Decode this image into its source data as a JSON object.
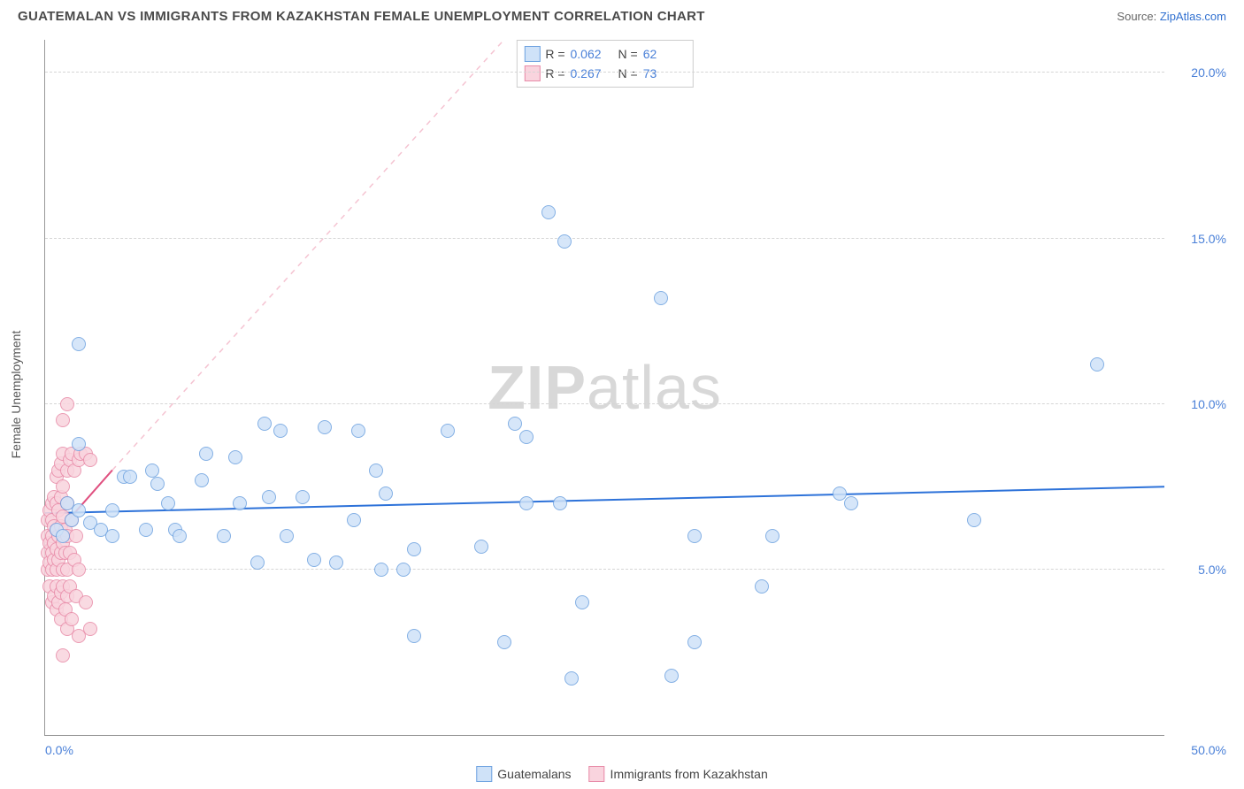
{
  "header": {
    "title": "GUATEMALAN VS IMMIGRANTS FROM KAZAKHSTAN FEMALE UNEMPLOYMENT CORRELATION CHART",
    "source_label": "Source:",
    "source_name": "ZipAtlas.com"
  },
  "watermark": {
    "prefix": "ZIP",
    "suffix": "atlas"
  },
  "chart": {
    "type": "scatter",
    "y_axis_title": "Female Unemployment",
    "background_color": "#ffffff",
    "grid_color": "#d5d5d5",
    "axis_color": "#999999",
    "tick_label_color": "#4a80d8",
    "xlim": [
      0,
      50
    ],
    "ylim": [
      0,
      21
    ],
    "x_ticks": [
      {
        "value": 0,
        "label": "0.0%",
        "pos": "left"
      },
      {
        "value": 50,
        "label": "50.0%",
        "pos": "right"
      }
    ],
    "y_ticks": [
      {
        "value": 5,
        "label": "5.0%"
      },
      {
        "value": 10,
        "label": "10.0%"
      },
      {
        "value": 15,
        "label": "15.0%"
      },
      {
        "value": 20,
        "label": "20.0%"
      }
    ],
    "stats_legend": [
      {
        "series": "blue",
        "r_label": "R =",
        "r_value": "0.062",
        "n_label": "N =",
        "n_value": "62"
      },
      {
        "series": "pink",
        "r_label": "R =",
        "r_value": "0.267",
        "n_label": "N =",
        "n_value": "73"
      }
    ],
    "series_legend": [
      {
        "series": "blue",
        "label": "Guatemalans"
      },
      {
        "series": "pink",
        "label": "Immigrants from Kazakhstan"
      }
    ],
    "series": {
      "blue": {
        "label": "Guatemalans",
        "marker_fill": "#cfe2f8",
        "marker_stroke": "#6fa3e0",
        "marker_size": 16,
        "marker_opacity": 0.85,
        "trend": {
          "x1": 0,
          "y1": 6.7,
          "x2": 50,
          "y2": 7.5,
          "color": "#2d72d9",
          "width": 2,
          "dash": "none"
        },
        "points": [
          [
            0.5,
            6.2
          ],
          [
            0.8,
            6.0
          ],
          [
            1.0,
            7.0
          ],
          [
            1.2,
            6.5
          ],
          [
            1.5,
            6.8
          ],
          [
            1.5,
            8.8
          ],
          [
            1.5,
            11.8
          ],
          [
            2.0,
            6.4
          ],
          [
            2.5,
            6.2
          ],
          [
            3.0,
            6.8
          ],
          [
            3.0,
            6.0
          ],
          [
            3.5,
            7.8
          ],
          [
            3.8,
            7.8
          ],
          [
            4.5,
            6.2
          ],
          [
            4.8,
            8.0
          ],
          [
            5.0,
            7.6
          ],
          [
            5.5,
            7.0
          ],
          [
            5.8,
            6.2
          ],
          [
            6.0,
            6.0
          ],
          [
            7.0,
            7.7
          ],
          [
            7.2,
            8.5
          ],
          [
            8.0,
            6.0
          ],
          [
            8.5,
            8.4
          ],
          [
            8.7,
            7.0
          ],
          [
            9.5,
            5.2
          ],
          [
            9.8,
            9.4
          ],
          [
            10.0,
            7.2
          ],
          [
            10.8,
            6.0
          ],
          [
            11.5,
            7.2
          ],
          [
            12.5,
            9.3
          ],
          [
            13.0,
            5.2
          ],
          [
            13.8,
            6.5
          ],
          [
            14.0,
            9.2
          ],
          [
            14.8,
            8.0
          ],
          [
            15.0,
            5.0
          ],
          [
            15.2,
            7.3
          ],
          [
            16.0,
            5.0
          ],
          [
            16.5,
            5.6
          ],
          [
            16.5,
            3.0
          ],
          [
            18.0,
            9.2
          ],
          [
            19.5,
            5.7
          ],
          [
            20.5,
            2.8
          ],
          [
            21.0,
            9.4
          ],
          [
            21.5,
            7.0
          ],
          [
            21.5,
            9.0
          ],
          [
            22.5,
            15.8
          ],
          [
            23.2,
            14.9
          ],
          [
            23.5,
            1.7
          ],
          [
            24.0,
            4.0
          ],
          [
            27.5,
            13.2
          ],
          [
            28.0,
            1.8
          ],
          [
            29.0,
            2.8
          ],
          [
            29.0,
            6.0
          ],
          [
            32.0,
            4.5
          ],
          [
            32.5,
            6.0
          ],
          [
            35.5,
            7.3
          ],
          [
            36.0,
            7.0
          ],
          [
            41.5,
            6.5
          ],
          [
            47.0,
            11.2
          ],
          [
            23.0,
            7.0
          ],
          [
            10.5,
            9.2
          ],
          [
            12.0,
            5.3
          ]
        ]
      },
      "pink": {
        "label": "Immigrants from Kazakhstan",
        "marker_fill": "#f9d4de",
        "marker_stroke": "#e88ba8",
        "marker_size": 16,
        "marker_opacity": 0.85,
        "trend_solid": {
          "x1": 0,
          "y1": 5.7,
          "x2": 3.0,
          "y2": 8.0,
          "color": "#e05080",
          "width": 2
        },
        "trend_dash": {
          "x1": 3.0,
          "y1": 8.0,
          "x2": 20.5,
          "y2": 21.0,
          "color": "#f5c4d2",
          "width": 1.5
        },
        "points": [
          [
            0.1,
            5.0
          ],
          [
            0.1,
            5.5
          ],
          [
            0.1,
            6.0
          ],
          [
            0.1,
            6.5
          ],
          [
            0.2,
            5.2
          ],
          [
            0.2,
            5.8
          ],
          [
            0.2,
            6.8
          ],
          [
            0.2,
            4.5
          ],
          [
            0.3,
            5.0
          ],
          [
            0.3,
            5.5
          ],
          [
            0.3,
            6.0
          ],
          [
            0.3,
            6.5
          ],
          [
            0.3,
            7.0
          ],
          [
            0.3,
            4.0
          ],
          [
            0.4,
            5.3
          ],
          [
            0.4,
            5.8
          ],
          [
            0.4,
            6.3
          ],
          [
            0.4,
            7.2
          ],
          [
            0.4,
            4.2
          ],
          [
            0.5,
            5.0
          ],
          [
            0.5,
            5.6
          ],
          [
            0.5,
            6.2
          ],
          [
            0.5,
            7.0
          ],
          [
            0.5,
            7.8
          ],
          [
            0.5,
            4.5
          ],
          [
            0.5,
            3.8
          ],
          [
            0.6,
            5.3
          ],
          [
            0.6,
            6.0
          ],
          [
            0.6,
            6.8
          ],
          [
            0.6,
            8.0
          ],
          [
            0.6,
            4.0
          ],
          [
            0.7,
            5.5
          ],
          [
            0.7,
            6.3
          ],
          [
            0.7,
            7.2
          ],
          [
            0.7,
            8.2
          ],
          [
            0.7,
            4.3
          ],
          [
            0.7,
            3.5
          ],
          [
            0.8,
            5.0
          ],
          [
            0.8,
            5.8
          ],
          [
            0.8,
            6.6
          ],
          [
            0.8,
            7.5
          ],
          [
            0.8,
            8.5
          ],
          [
            0.8,
            4.5
          ],
          [
            0.8,
            9.5
          ],
          [
            0.9,
            5.5
          ],
          [
            0.9,
            6.2
          ],
          [
            0.9,
            3.8
          ],
          [
            1.0,
            5.0
          ],
          [
            1.0,
            6.0
          ],
          [
            1.0,
            7.0
          ],
          [
            1.0,
            8.0
          ],
          [
            1.0,
            4.2
          ],
          [
            1.0,
            3.2
          ],
          [
            1.1,
            5.5
          ],
          [
            1.1,
            8.3
          ],
          [
            1.1,
            4.5
          ],
          [
            1.2,
            6.5
          ],
          [
            1.2,
            8.5
          ],
          [
            1.2,
            3.5
          ],
          [
            1.3,
            5.3
          ],
          [
            1.3,
            8.0
          ],
          [
            1.4,
            4.2
          ],
          [
            1.4,
            6.0
          ],
          [
            1.5,
            5.0
          ],
          [
            1.5,
            8.3
          ],
          [
            1.5,
            3.0
          ],
          [
            1.6,
            8.5
          ],
          [
            1.8,
            4.0
          ],
          [
            1.8,
            8.5
          ],
          [
            2.0,
            3.2
          ],
          [
            2.0,
            8.3
          ],
          [
            1.0,
            10.0
          ],
          [
            0.8,
            2.4
          ]
        ]
      }
    }
  }
}
